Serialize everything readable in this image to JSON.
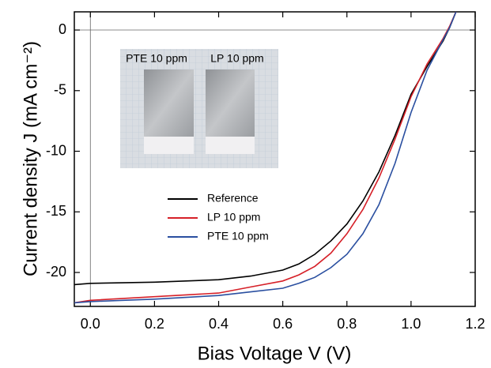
{
  "chart_data": {
    "type": "line",
    "x_label": "Bias Voltage V (V)",
    "y_label": "Current density J (mA cm⁻²)",
    "inset_labels": [
      "PTE 10 ppm",
      "LP 10 ppm"
    ],
    "x": [
      -0.05,
      0,
      0.2,
      0.4,
      0.5,
      0.6,
      0.65,
      0.7,
      0.75,
      0.8,
      0.85,
      0.9,
      0.95,
      1.0,
      1.05,
      1.1,
      1.12,
      1.14
    ],
    "series": [
      {
        "name": "Reference",
        "color": "#000000",
        "values": [
          -21.0,
          -20.9,
          -20.8,
          -20.6,
          -20.3,
          -19.8,
          -19.3,
          -18.5,
          -17.4,
          -16.0,
          -14.1,
          -11.7,
          -8.7,
          -5.3,
          -3.0,
          -0.9,
          0.2,
          1.5
        ]
      },
      {
        "name": "LP 10 ppm",
        "color": "#d62028",
        "values": [
          -22.5,
          -22.3,
          -22.0,
          -21.7,
          -21.2,
          -20.7,
          -20.2,
          -19.5,
          -18.4,
          -16.8,
          -14.8,
          -12.2,
          -9.0,
          -5.5,
          -2.8,
          -0.7,
          0.3,
          1.5
        ]
      },
      {
        "name": "PTE 10 ppm",
        "color": "#2a4fa0",
        "values": [
          -22.5,
          -22.4,
          -22.2,
          -21.9,
          -21.6,
          -21.3,
          -20.9,
          -20.4,
          -19.6,
          -18.5,
          -16.8,
          -14.4,
          -11.0,
          -6.8,
          -3.3,
          -0.8,
          0.2,
          1.5
        ]
      }
    ],
    "xlim": [
      -0.05,
      1.2
    ],
    "xticks": [
      {
        "value": 0,
        "label": "0.0"
      },
      0.2,
      0.4,
      0.6,
      0.8,
      {
        "value": 1,
        "label": "1.0"
      },
      1.2
    ],
    "ylim": [
      -22.8,
      1.5
    ],
    "yticks": [
      0,
      -5,
      -10,
      -15,
      -20
    ],
    "reference_lines": {
      "x": 0,
      "y": 0
    },
    "legend": "center-left"
  }
}
